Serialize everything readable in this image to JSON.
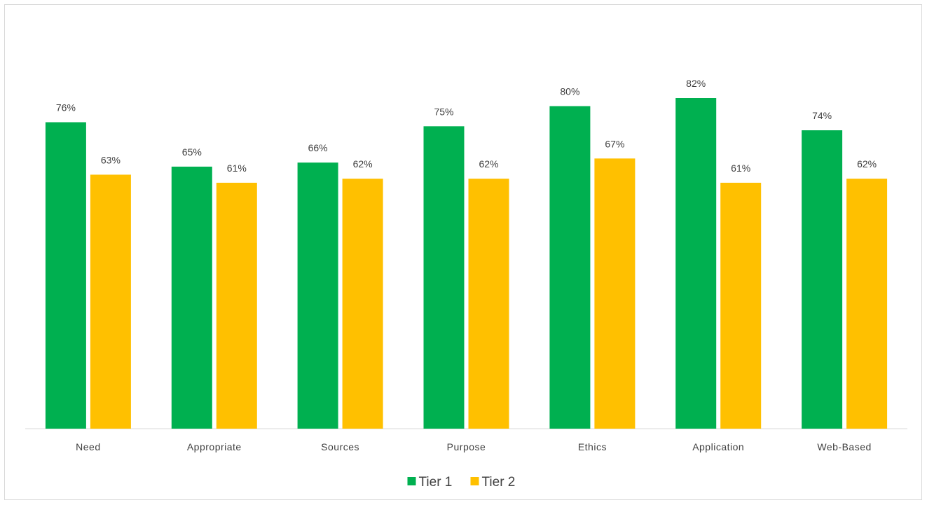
{
  "chart_data": {
    "type": "bar",
    "title": "",
    "xlabel": "",
    "ylabel": "",
    "ylim": [
      0,
      100
    ],
    "grid": false,
    "legend_position": "bottom",
    "categories": [
      "Need",
      "Appropriate",
      "Sources",
      "Purpose",
      "Ethics",
      "Application",
      "Web-Based"
    ],
    "series": [
      {
        "name": "Tier 1",
        "color": "#00b050",
        "values": [
          76,
          65,
          66,
          75,
          80,
          82,
          74
        ],
        "labels": [
          "76%",
          "65%",
          "66%",
          "75%",
          "80%",
          "82%",
          "74%"
        ]
      },
      {
        "name": "Tier 2",
        "color": "#ffc000",
        "values": [
          63,
          61,
          62,
          62,
          67,
          61,
          62
        ],
        "labels": [
          "63%",
          "61%",
          "62%",
          "62%",
          "67%",
          "61%",
          "62%"
        ]
      }
    ]
  }
}
